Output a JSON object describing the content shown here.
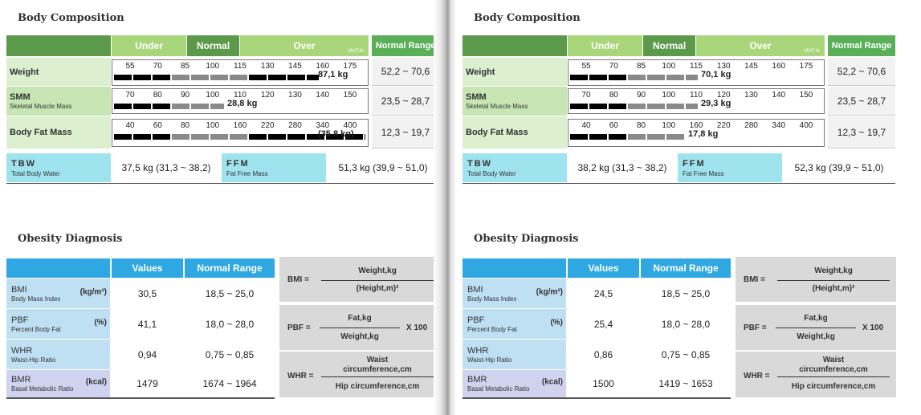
{
  "common": {
    "body_title": "Body Composition",
    "under": "Under",
    "normal": "Normal",
    "over": "Over",
    "unit": "UNIT:%",
    "normal_range_head": "Normal Range",
    "weight": "Weight",
    "smm": "SMM",
    "smm_sub": "Skeletal Muscle Mass",
    "bodyfat": "Body Fat Mass",
    "tbw": "TBW",
    "tbw_sub": "Total Body Water",
    "ffm": "FFM",
    "ffm_sub": "Fat Free Mass",
    "weight_ticks": [
      "55",
      "70",
      "85",
      "100",
      "115",
      "130",
      "145",
      "160",
      "175"
    ],
    "smm_ticks": [
      "70",
      "80",
      "90",
      "100",
      "110",
      "120",
      "130",
      "140",
      "150"
    ],
    "fat_ticks": [
      "40",
      "60",
      "80",
      "100",
      "160",
      "220",
      "280",
      "340",
      "400"
    ],
    "obesity_title": "Obesity Diagnosis",
    "values_head": "Values",
    "nr_head": "Normal Range",
    "bmi": "BMI",
    "bmi_sub": "Body Mass Index",
    "bmi_unit": "(kg/m²)",
    "pbf": "PBF",
    "pbf_sub": "Percent Body Fat",
    "pbf_unit": "(%)",
    "whr": "WHR",
    "whr_sub": "Waist-Hip Ratio",
    "bmr": "BMR",
    "bmr_sub": "Basal Metabolic Ratio",
    "bmr_unit": "(kcal)",
    "f_bmi": "BMI =",
    "f_bmi_num": "Weight,kg",
    "f_bmi_den": "(Height,m)²",
    "f_pbf": "PBF =",
    "f_pbf_num": "Fat,kg",
    "f_pbf_den": "Weight,kg",
    "f_pbf_mult": "X 100",
    "f_whr": "WHR =",
    "f_whr_num1": "Waist",
    "f_whr_num2": "circumference,cm",
    "f_whr_den": "Hip circumference,cm"
  },
  "left": {
    "weight_value": "87,1 kg",
    "weight_level": 0.81,
    "smm_value": "28,8 kg",
    "smm_level": 0.44,
    "fat_value": "(35,8 kg)",
    "fat_level": 0.99,
    "weight_range": "52,2 ~ 70,6",
    "smm_range": "23,5 ~ 28,7",
    "fat_range": "12,3 ~ 19,7",
    "tbw_value": "37,5 kg (31,3 ~ 38,2)",
    "ffm_value": "51,3 kg (39,9 ~ 51,0)",
    "bmi_value": "30,5",
    "bmi_range": "18,5 ~ 25,0",
    "pbf_value": "41,1",
    "pbf_range": "18,0 ~ 28,0",
    "whr_value": "0,94",
    "whr_range": "0,75 ~ 0,85",
    "bmr_value": "1479",
    "bmr_range": "1674 ~ 1964"
  },
  "right": {
    "weight_value": "70,1 kg",
    "weight_level": 0.51,
    "smm_value": "29,3 kg",
    "smm_level": 0.51,
    "fat_value": "17,8 kg",
    "fat_level": 0.46,
    "weight_range": "52,2 ~ 70,6",
    "smm_range": "23,5 ~ 28,7",
    "fat_range": "12,3 ~ 19,7",
    "tbw_value": "38,2 kg (31,3 ~ 38,2)",
    "ffm_value": "52,3 kg (39,9 ~ 51,0)",
    "bmi_value": "24,5",
    "bmi_range": "18,5 ~ 25,0",
    "pbf_value": "25,4",
    "pbf_range": "18,0 ~ 28,0",
    "whr_value": "0,86",
    "whr_range": "0,75 ~ 0,85",
    "bmr_value": "1500",
    "bmr_range": "1419 ~ 1653"
  }
}
